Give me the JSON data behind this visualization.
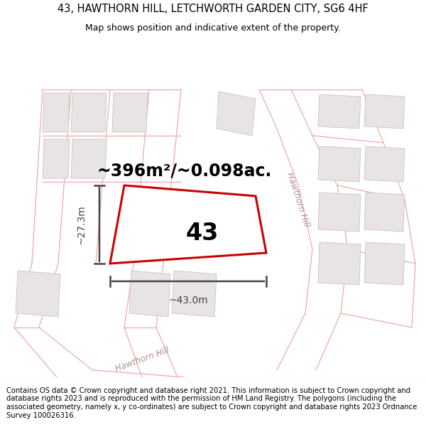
{
  "title_line1": "43, HAWTHORN HILL, LETCHWORTH GARDEN CITY, SG6 4HF",
  "title_line2": "Map shows position and indicative extent of the property.",
  "area_label": "~396m²/~0.098ac.",
  "plot_number": "43",
  "dim_width": "~43.0m",
  "dim_height": "~27.3m",
  "footer_text": "Contains OS data © Crown copyright and database right 2021. This information is subject to Crown copyright and database rights 2023 and is reproduced with the permission of HM Land Registry. The polygons (including the associated geometry, namely x, y co-ordinates) are subject to Crown copyright and database rights 2023 Ordnance Survey 100026316.",
  "map_bg": "#f9f6f6",
  "plot_fill": "#ffffff",
  "plot_edge": "#cc0000",
  "bldg_fill": "#e8e4e4",
  "bldg_edge": "#c8c4c4",
  "road_fill": "#f5eeee",
  "road_edge": "#f0aaaa",
  "dim_color": "#444444",
  "road_label_color": "#b09090",
  "title_fontsize": 10.5,
  "subtitle_fontsize": 9,
  "area_fontsize": 17,
  "plot_num_fontsize": 24,
  "dim_fontsize": 10,
  "road_label_fontsize": 8.5,
  "footer_fontsize": 7.2
}
